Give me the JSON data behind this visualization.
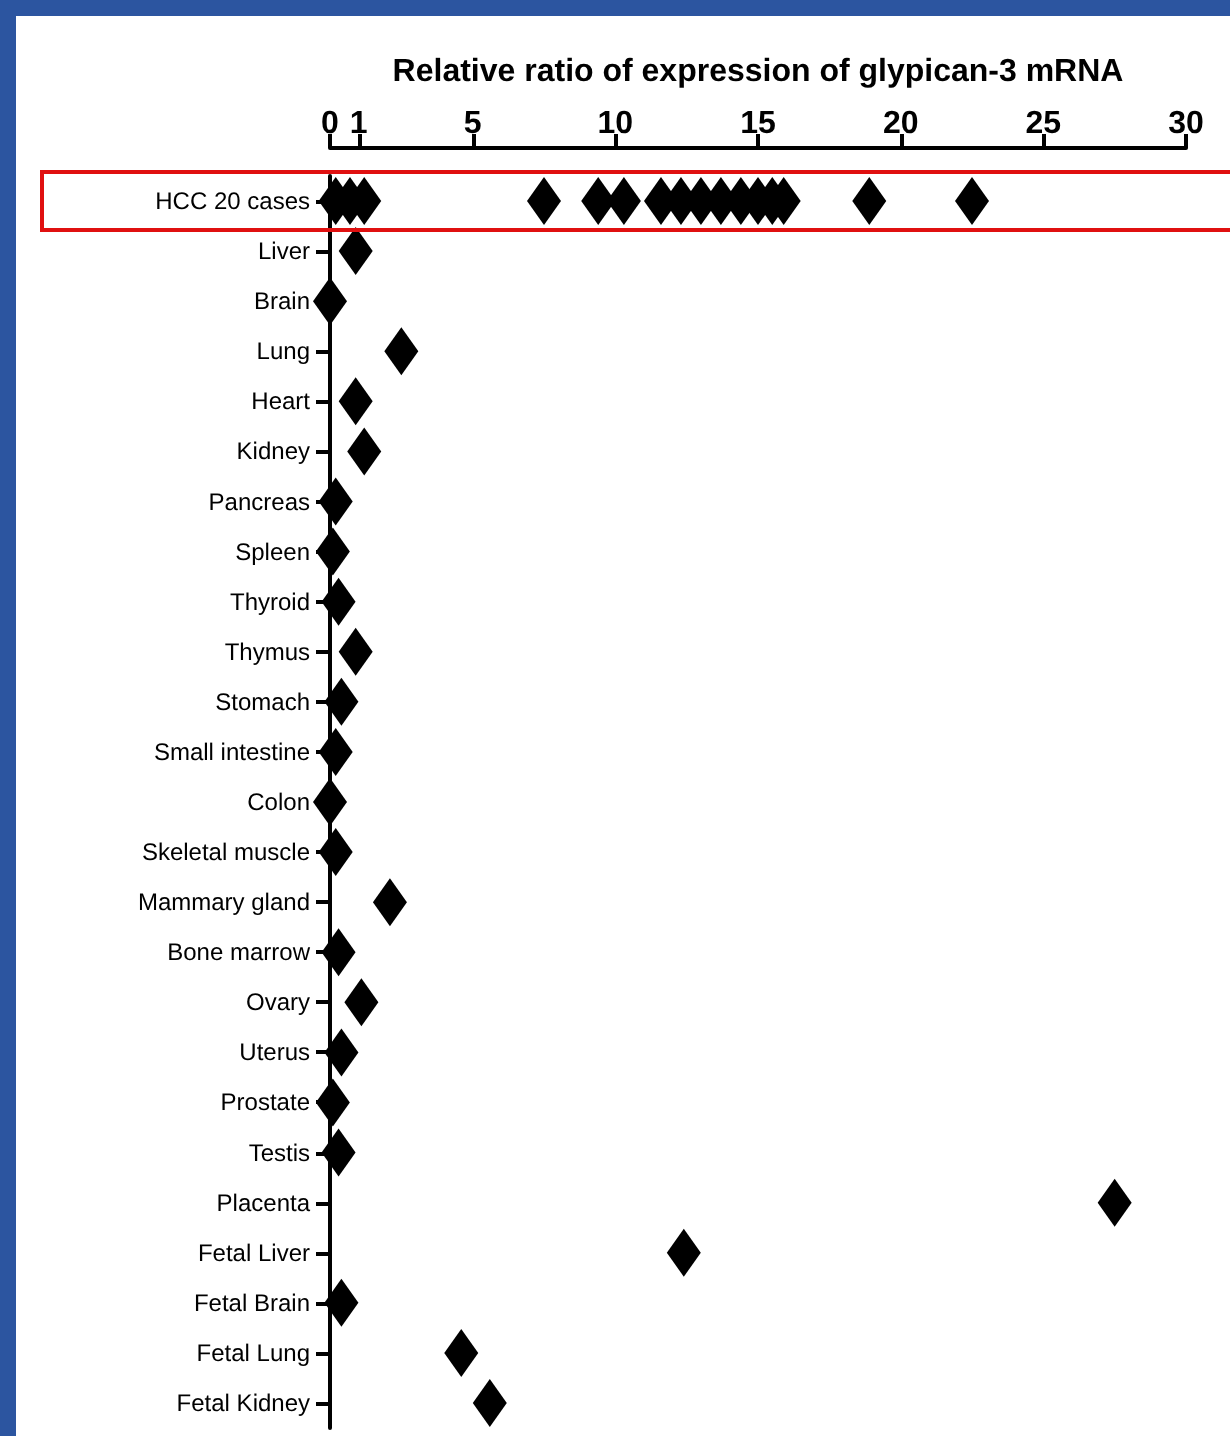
{
  "chart_data": {
    "type": "scatter",
    "orientation": "horizontal",
    "xlabel": "Relative ratio of expression of glypican-3 mRNA",
    "categories": [
      "HCC 20 cases",
      "Liver",
      "Brain",
      "Lung",
      "Heart",
      "Kidney",
      "Pancreas",
      "Spleen",
      "Thyroid",
      "Thymus",
      "Stomach",
      "Small intestine",
      "Colon",
      "Skeletal muscle",
      "Mammary gland",
      "Bone marrow",
      "Ovary",
      "Uterus",
      "Prostate",
      "Testis",
      "Placenta",
      "Fetal Liver",
      "Fetal Brain",
      "Fetal Lung",
      "Fetal Kidney"
    ],
    "series": [
      {
        "color": "#000000",
        "x": [
          "HCC 20 cases",
          "HCC 20 cases",
          "HCC 20 cases",
          "HCC 20 cases",
          "HCC 20 cases",
          "HCC 20 cases",
          "HCC 20 cases",
          "HCC 20 cases",
          "HCC 20 cases",
          "HCC 20 cases",
          "HCC 20 cases",
          "HCC 20 cases",
          "HCC 20 cases",
          "HCC 20 cases",
          "HCC 20 cases",
          "HCC 20 cases",
          "Liver",
          "Brain",
          "Lung",
          "Heart",
          "Kidney",
          "Pancreas",
          "Spleen",
          "Thyroid",
          "Thymus",
          "Stomach",
          "Small intestine",
          "Colon",
          "Skeletal muscle",
          "Mammary gland",
          "Bone marrow",
          "Ovary",
          "Uterus",
          "Prostate",
          "Testis",
          "Placenta",
          "Fetal Liver",
          "Fetal Brain",
          "Fetal Lung",
          "Fetal Kidney"
        ],
        "values": [
          0.2,
          0.7,
          1.2,
          7.5,
          9.4,
          10.3,
          11.6,
          12.3,
          13.0,
          13.7,
          14.4,
          15.0,
          15.5,
          15.9,
          18.9,
          22.5,
          0.9,
          0,
          2.5,
          0.9,
          1.2,
          0.2,
          0.1,
          0.3,
          0.9,
          0.4,
          0.2,
          0,
          0.2,
          2.1,
          0.3,
          1.1,
          0.4,
          0.1,
          0.3,
          27.5,
          12.4,
          0.4,
          4.6,
          5.6
        ]
      }
    ],
    "xlim": [
      0,
      30
    ],
    "xticks": [
      0,
      1,
      5,
      10,
      15,
      20,
      25,
      30
    ],
    "marker": "diamond",
    "grid": false
  }
}
